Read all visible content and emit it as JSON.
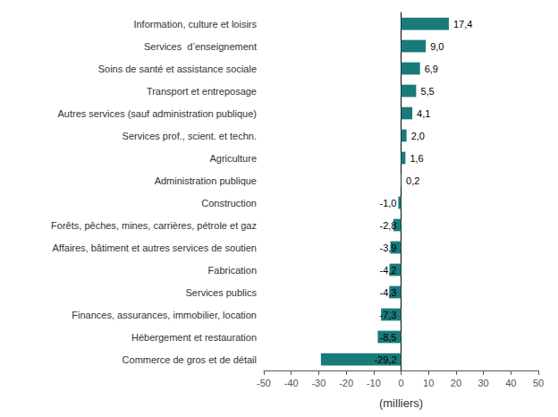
{
  "chart_data": {
    "type": "bar",
    "orientation": "horizontal",
    "categories": [
      "Commerce de gros et de détail",
      "Hébergement et restauration",
      "Finances, assurances, immobilier, location",
      "Services publics",
      "Fabrication",
      "Affaires, bâtiment et autres services de soutien",
      "Forêts, pêches, mines, carrières, pétrole et gaz",
      "Construction",
      "Administration publique",
      "Agriculture",
      "Services prof., scient. et techn.",
      "Autres services (sauf administration publique)",
      "Transport et entreposage",
      "Soins de santé et assistance sociale",
      "Services  d’enseignement",
      "Information, culture et loisirs"
    ],
    "values": [
      -29.2,
      -8.5,
      -7.3,
      -4.3,
      -4.2,
      -3.9,
      -2.8,
      -1.0,
      0.2,
      1.6,
      2.0,
      4.1,
      5.5,
      6.9,
      9.0,
      17.4
    ],
    "value_labels": [
      "-29,2",
      "-8,5",
      "-7,3",
      "-4,3",
      "-4,2",
      "-3,9",
      "-2,8",
      "-1,0",
      "0,2",
      "1,6",
      "2,0",
      "4,1",
      "5,5",
      "6,9",
      "9,0",
      "17,4"
    ],
    "color": "#1a7a7a",
    "xlabel": "(milliers)",
    "xlim": [
      -50,
      50
    ],
    "xticks": [
      -50,
      -40,
      -30,
      -20,
      -10,
      0,
      10,
      20,
      30,
      40,
      50
    ],
    "data_labels": true,
    "grid": false
  }
}
